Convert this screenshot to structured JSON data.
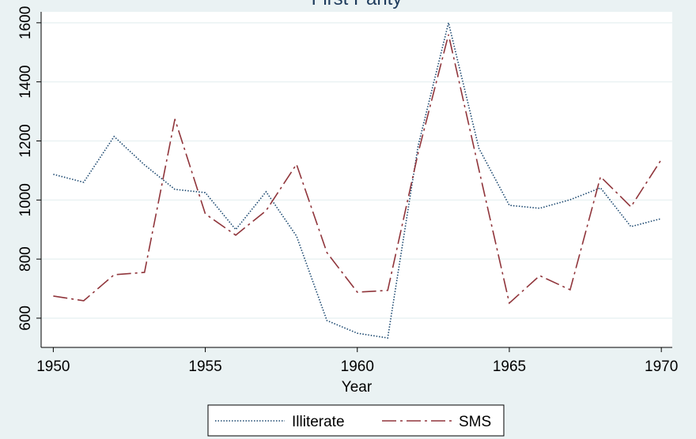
{
  "chart_data": {
    "type": "line",
    "title": "First Parity",
    "x_label": "Year",
    "x": [
      1950,
      1951,
      1952,
      1953,
      1954,
      1955,
      1956,
      1957,
      1958,
      1959,
      1960,
      1961,
      1962,
      1963,
      1964,
      1965,
      1966,
      1967,
      1968,
      1969,
      1970
    ],
    "series": [
      {
        "name": "Illiterate",
        "color": "#1a476f",
        "dash": "1.5 2",
        "values": [
          1087,
          1060,
          1215,
          1119,
          1036,
          1025,
          900,
          1028,
          878,
          592,
          549,
          533,
          1183,
          1600,
          1175,
          982,
          972,
          1001,
          1041,
          910,
          937
        ]
      },
      {
        "name": "SMS",
        "color": "#90353b",
        "dash": "18 5 3 5",
        "values": [
          675,
          659,
          747,
          755,
          1274,
          953,
          881,
          964,
          1121,
          822,
          688,
          694,
          1159,
          1560,
          1103,
          651,
          744,
          696,
          1079,
          977,
          1137
        ]
      }
    ],
    "xlim": [
      1949.6,
      1970.36
    ],
    "xticks": [
      1950,
      1955,
      1960,
      1965,
      1970
    ],
    "ylim": [
      501,
      1637
    ],
    "yticks": [
      600,
      800,
      1000,
      1200,
      1400,
      1600
    ],
    "grid": true,
    "legend": "bottom"
  }
}
